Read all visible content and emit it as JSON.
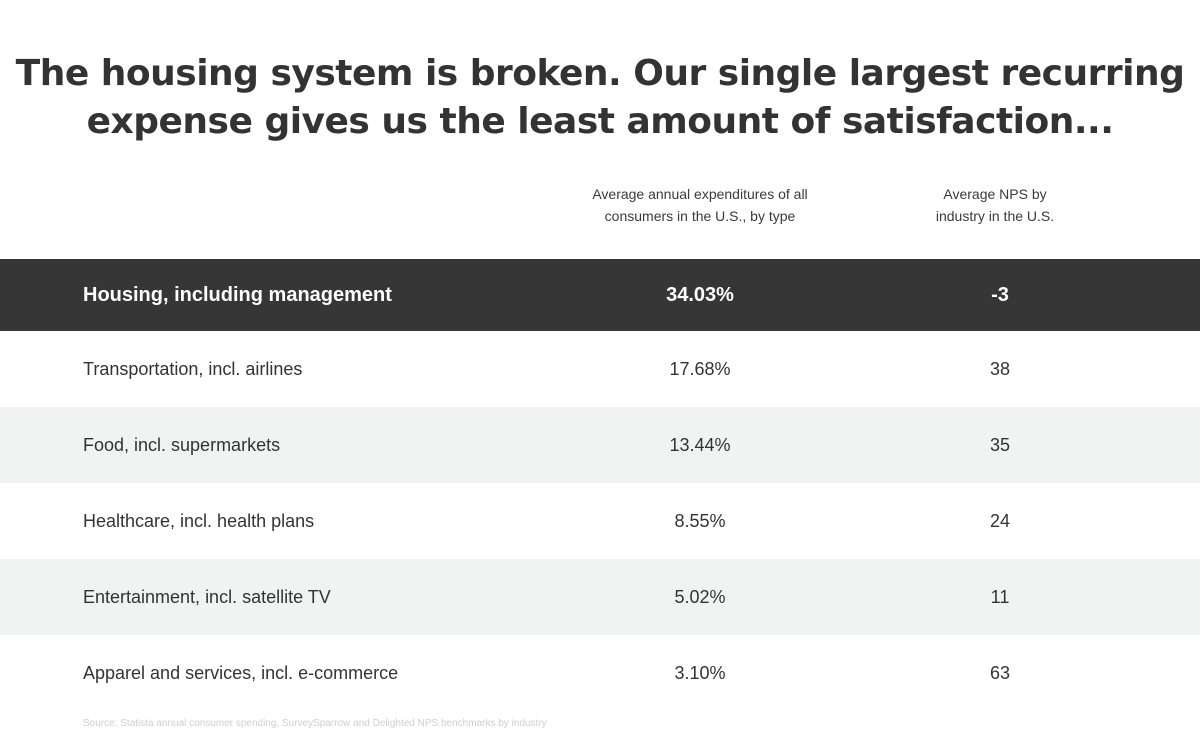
{
  "headline": {
    "line1": "The housing system is broken. Our single largest recurring",
    "line2": "expense gives us the least amount of satisfaction..."
  },
  "columns": {
    "spend_line1": "Average annual expenditures of all",
    "spend_line2": "consumers in the U.S., by type",
    "nps_line1": "Average NPS by",
    "nps_line2": "industry in the U.S."
  },
  "rows": [
    {
      "label": "Housing, including management",
      "spend": "34.03%",
      "nps": "-3"
    },
    {
      "label": "Transportation, incl. airlines",
      "spend": "17.68%",
      "nps": "38"
    },
    {
      "label": "Food, incl. supermarkets",
      "spend": "13.44%",
      "nps": "35"
    },
    {
      "label": "Healthcare, incl. health plans",
      "spend": "8.55%",
      "nps": "24"
    },
    {
      "label": "Entertainment, incl. satellite TV",
      "spend": "5.02%",
      "nps": "11"
    },
    {
      "label": "Apparel and services, incl. e-commerce",
      "spend": "3.10%",
      "nps": "63"
    }
  ],
  "source": "Source: Statista annual consumer spending, SurveySparrow and Delighted NPS benchmarks by industry",
  "colors": {
    "highlight_row_bg": "#363636",
    "alt_row_bg": "#f1f3f2",
    "text": "#333333"
  },
  "chart_data": {
    "type": "table",
    "title": "The housing system is broken. Our single largest recurring expense gives us the least amount of satisfaction...",
    "columns": [
      "",
      "Average annual expenditures of all consumers in the U.S., by type",
      "Average NPS by industry in the U.S."
    ],
    "categories": [
      "Housing, including management",
      "Transportation, incl. airlines",
      "Food, incl. supermarkets",
      "Healthcare, incl. health plans",
      "Entertainment, incl. satellite TV",
      "Apparel and services, incl. e-commerce"
    ],
    "series": [
      {
        "name": "Average annual expenditures of all consumers in the U.S., by type",
        "values": [
          34.03,
          17.68,
          13.44,
          8.55,
          5.02,
          3.1
        ]
      },
      {
        "name": "Average NPS by industry in the U.S.",
        "values": [
          -3,
          38,
          35,
          24,
          11,
          63
        ]
      }
    ]
  }
}
